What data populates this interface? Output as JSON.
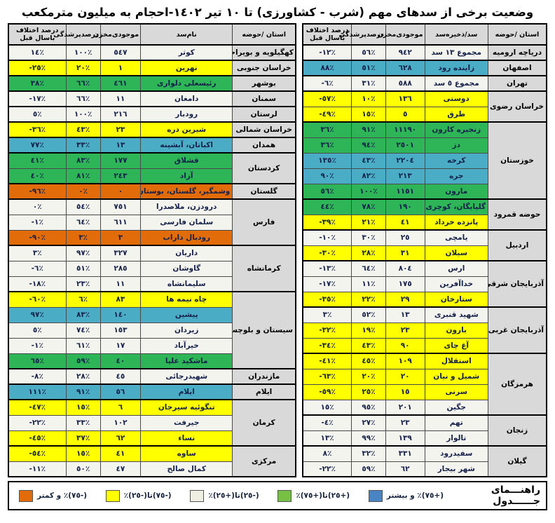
{
  "title": "وضعیت برخی از سدهای مهم (شرب - کشاورزی) تا ١٠ تیر ١٤٠٢-احجام به میلیون مترمکعب",
  "colors": {
    "white": "#f4f4ef",
    "yellow": "#ffff00",
    "green": "#2eb558",
    "blue": "#4bacc6",
    "orange": "#e36c0a",
    "header_bg": "#d9d9d9",
    "province_bg": "#d9d9d9",
    "text": "#16214a"
  },
  "tables": {
    "right": {
      "headers": [
        "استان /حوضه",
        "سد/ذخیره‌سد",
        "موجودی‌مخزن",
        "درصدپرشدگی",
        "درصد اختلاف باسال قبل"
      ],
      "groups": [
        {
          "province": "دریاچه ارومیه",
          "rows": [
            {
              "name": "مجموع ١٣ سد",
              "volume": "٩٤٢",
              "fill": "٥٦٪",
              "diff": "-١٢٪",
              "color": "white"
            }
          ]
        },
        {
          "province": "اصفهان",
          "rows": [
            {
              "name": "زاینده رود",
              "volume": "٦٢٨",
              "fill": "٥١٪",
              "diff": "٨٨٪",
              "color": "blue"
            }
          ]
        },
        {
          "province": "تهران",
          "rows": [
            {
              "name": "مجموع ٥ سد",
              "volume": "٥٨٨",
              "fill": "٣١٪",
              "diff": "-٦٪",
              "color": "white"
            }
          ]
        },
        {
          "province": "خراسان رضوی",
          "rows": [
            {
              "name": "دوستی",
              "volume": "١٣٦",
              "fill": "١٠٪",
              "diff": "-٥٧٪",
              "color": "yellow"
            },
            {
              "name": "طرق",
              "volume": "٥",
              "fill": "١٥٪",
              "diff": "-٤٩٪",
              "color": "yellow"
            }
          ]
        },
        {
          "province": "خوزستان",
          "rows": [
            {
              "name": "زنجیره کارون",
              "volume": "١١١٩٠",
              "fill": "٩١٪",
              "diff": "٣٦٪",
              "color": "green"
            },
            {
              "name": "دز",
              "volume": "٢٥٠١",
              "fill": "٩٤٪",
              "diff": "٣٦٪",
              "color": "green"
            },
            {
              "name": "کرخه",
              "volume": "٢٢٠٤",
              "fill": "٤٣٪",
              "diff": "١٣٥٪",
              "color": "blue"
            },
            {
              "name": "جره",
              "volume": "٢١٣",
              "fill": "٨٢٪",
              "diff": "٩٠٪",
              "color": "blue"
            },
            {
              "name": "مارون",
              "volume": "١١٥١",
              "fill": "١٠٠٪",
              "diff": "٥٦٪",
              "color": "green"
            }
          ]
        },
        {
          "province": "حوضه قمرود",
          "rows": [
            {
              "name": "گلپایگان، کوچری",
              "volume": "١٩٠",
              "fill": "٧٨٪",
              "diff": "٤٤٪",
              "color": "green"
            },
            {
              "name": "پانزده خرداد",
              "volume": "٤١",
              "fill": "٢١٪",
              "diff": "-٣٩٪",
              "color": "yellow"
            }
          ]
        },
        {
          "province": "اردبیل",
          "rows": [
            {
              "name": "یامچی",
              "volume": "٢٥",
              "fill": "٣٠٪",
              "diff": "-١٠٪",
              "color": "white"
            },
            {
              "name": "سبلان",
              "volume": "٣١",
              "fill": "٢٨٪",
              "diff": "-٣٠٪",
              "color": "yellow"
            }
          ]
        },
        {
          "province": "آذربایجان شرقی",
          "rows": [
            {
              "name": "ارس",
              "volume": "٨٠٤",
              "fill": "٦٤٪",
              "diff": "-١٣٪",
              "color": "white"
            },
            {
              "name": "خداآفرین",
              "volume": "١٧٥",
              "fill": "١١٪",
              "diff": "-١٧٪",
              "color": "white"
            },
            {
              "name": "ستارخان",
              "volume": "٢٩",
              "fill": "٢٢٪",
              "diff": "-٣٥٪",
              "color": "yellow"
            }
          ]
        },
        {
          "province": "آذربایجان غربی",
          "rows": [
            {
              "name": "شهید قنبری",
              "volume": "١٣",
              "fill": "٥٢٪",
              "diff": "٣٪",
              "color": "white"
            },
            {
              "name": "بارون",
              "volume": "٢٣",
              "fill": "١٩٪",
              "diff": "-٣٢٪",
              "color": "yellow"
            },
            {
              "name": "آغ چای",
              "volume": "٩٠",
              "fill": "٤٣٪",
              "diff": "-٣٤٪",
              "color": "yellow"
            }
          ]
        },
        {
          "province": "هرمزگان",
          "rows": [
            {
              "name": "استقلال",
              "volume": "١٠٩",
              "fill": "٤٥٪",
              "diff": "-٤١٪",
              "color": "yellow"
            },
            {
              "name": "شمیل و نیان",
              "volume": "٢٠",
              "fill": "٢٠٪",
              "diff": "-٦٣٪",
              "color": "yellow"
            },
            {
              "name": "سرنی",
              "volume": "١٥",
              "fill": "٢٥٪",
              "diff": "-٥٩٪",
              "color": "yellow"
            },
            {
              "name": "جگین",
              "volume": "٢٠١",
              "fill": "٩٥٪",
              "diff": "١٥٪",
              "color": "white"
            }
          ]
        },
        {
          "province": "زنجان",
          "rows": [
            {
              "name": "تهم",
              "volume": "٢٣",
              "fill": "٢٧٪",
              "diff": "-٤٪",
              "color": "white"
            },
            {
              "name": "تالوار",
              "volume": "١٣٩",
              "fill": "٩٩٪",
              "diff": "١٣٪",
              "color": "white"
            }
          ]
        },
        {
          "province": "گیلان",
          "rows": [
            {
              "name": "سفیدرود",
              "volume": "٣٣١",
              "fill": "٣٢٪",
              "diff": "٨٪",
              "color": "white"
            },
            {
              "name": "شهر بیجار",
              "volume": "٦٢",
              "fill": "٥٩٪",
              "diff": "-٢٢٪",
              "color": "white"
            }
          ]
        }
      ]
    },
    "left": {
      "headers": [
        "استان /حوضه",
        "نام‌سد",
        "موجودی‌مخزن",
        "درصدپرشدگی",
        "درصد اختلاف باسال قبل"
      ],
      "groups": [
        {
          "province": "کهگیلویه و بویراحمد",
          "rows": [
            {
              "name": "کوثر",
              "volume": "٥٤٧",
              "fill": "١٠٠٪",
              "diff": "١٤٪",
              "color": "white"
            }
          ]
        },
        {
          "province": "خراسان جنوبی",
          "rows": [
            {
              "name": "نهرین",
              "volume": "١",
              "fill": "٢٠٪",
              "diff": "-٢٥٪",
              "color": "yellow"
            }
          ]
        },
        {
          "province": "بوشهر",
          "rows": [
            {
              "name": "رئیسعلی دلواری",
              "volume": "٤٦١",
              "fill": "٦٦٪",
              "diff": "٣٨٪",
              "color": "green"
            }
          ]
        },
        {
          "province": "سمنان",
          "rows": [
            {
              "name": "دامغان",
              "volume": "١١",
              "fill": "٦٦٪",
              "diff": "-١٧٪",
              "color": "white"
            }
          ]
        },
        {
          "province": "لرستان",
          "rows": [
            {
              "name": "رودبار",
              "volume": "٢١٦",
              "fill": "١٠٠٪",
              "diff": "٥٪",
              "color": "white"
            }
          ]
        },
        {
          "province": "خراسان شمالی",
          "rows": [
            {
              "name": "شیرین دره",
              "volume": "٢٣",
              "fill": "٤٣٪",
              "diff": "-٣٦٪",
              "color": "yellow"
            }
          ]
        },
        {
          "province": "همدان",
          "rows": [
            {
              "name": "اکباتان، آبشینه",
              "volume": "١٣",
              "fill": "٣٣٪",
              "diff": "٧٧٪",
              "color": "blue"
            }
          ]
        },
        {
          "province": "کردستان",
          "rows": [
            {
              "name": "قشلاق",
              "volume": "١٧٧",
              "fill": "٨٣٪",
              "diff": "٤١٪",
              "color": "green"
            },
            {
              "name": "آزاد",
              "volume": "٢٤٣",
              "fill": "٨١٪",
              "diff": "٤٠٪",
              "color": "green"
            }
          ]
        },
        {
          "province": "گلستان",
          "rows": [
            {
              "name": "وشمگیر، گلستان، بوستان",
              "volume": "٠",
              "fill": "٠٪",
              "diff": "-٩٦٪",
              "color": "orange"
            }
          ]
        },
        {
          "province": "فارس",
          "rows": [
            {
              "name": "درودزن، ملاصدرا",
              "volume": "٧٥١",
              "fill": "٥٤٪",
              "diff": "٠٪",
              "color": "white"
            },
            {
              "name": "سلمان فارسی",
              "volume": "٦١١",
              "fill": "٦٤٪",
              "diff": "-١٪",
              "color": "white"
            },
            {
              "name": "رودبال داراب",
              "volume": "٣",
              "fill": "٣٪",
              "diff": "-٩٠٪",
              "color": "orange"
            }
          ]
        },
        {
          "province": "کرمانشاه",
          "rows": [
            {
              "name": "داریان",
              "volume": "٣٢٧",
              "fill": "٩٧٪",
              "diff": "٣٪",
              "color": "white"
            },
            {
              "name": "گاوشان",
              "volume": "٢٨٥",
              "fill": "٥١٪",
              "diff": "-٦٪",
              "color": "white"
            },
            {
              "name": "سلیمانشاه",
              "volume": "١١",
              "fill": "٢٣٪",
              "diff": "-١٨٪",
              "color": "white"
            }
          ]
        },
        {
          "province": "سیستان و بلوچستان",
          "rows": [
            {
              "name": "چاه نیمه ها",
              "volume": "٨٣",
              "fill": "٦٪",
              "diff": "-٦٠٪",
              "color": "yellow"
            },
            {
              "name": "پیشین",
              "volume": "١٤٠",
              "fill": "٨٣٪",
              "diff": "٩٧٪",
              "color": "blue"
            },
            {
              "name": "زیردان",
              "volume": "١٥٣",
              "fill": "٧٤٪",
              "diff": "٥٪",
              "color": "white"
            },
            {
              "name": "خیرآباد",
              "volume": "١٧",
              "fill": "٦١٪",
              "diff": "-١٪",
              "color": "white"
            },
            {
              "name": "ماشکید علیا",
              "volume": "٤٠",
              "fill": "٥٩٪",
              "diff": "٦٥٪",
              "color": "green"
            }
          ]
        },
        {
          "province": "مازندران",
          "rows": [
            {
              "name": "شهیدرجائی",
              "volume": "٤٥",
              "fill": "٢٨٪",
              "diff": "-٨٪",
              "color": "white"
            }
          ]
        },
        {
          "province": "ایلام",
          "rows": [
            {
              "name": "ایلام",
              "volume": "٥٦",
              "fill": "٩١٪",
              "diff": "١١١٪",
              "color": "blue"
            }
          ]
        },
        {
          "province": "کرمان",
          "rows": [
            {
              "name": "تنگوئیه سیرجان",
              "volume": "٦",
              "fill": "١٥٪",
              "diff": "-٤٧٪",
              "color": "yellow"
            },
            {
              "name": "جیرفت",
              "volume": "١٠٢",
              "fill": "٣٣٪",
              "diff": "-٢٢٪",
              "color": "white"
            },
            {
              "name": "نساء",
              "volume": "٦٢",
              "fill": "٣٧٪",
              "diff": "-٤٥٪",
              "color": "yellow"
            }
          ]
        },
        {
          "province": "مرکزی",
          "rows": [
            {
              "name": "ساوه",
              "volume": "٤١",
              "fill": "١٥٪",
              "diff": "-٥٤٪",
              "color": "yellow"
            },
            {
              "name": "کمال صالح",
              "volume": "٤٧",
              "fill": "٥٠٪",
              "diff": "-١١٪",
              "color": "white"
            }
          ]
        }
      ]
    }
  },
  "legend": {
    "title": "راهنـــمای جــــــدول",
    "items": [
      {
        "key": "blue",
        "label": "(+٧٥)٪ و بیشتر",
        "color": "#4a84c4"
      },
      {
        "key": "green",
        "label": "(+٢٥)تا(+٧٥)٪",
        "color": "#76c043"
      },
      {
        "key": "white",
        "label": "(-٢٥)تا(+٢٥)٪",
        "color": "#efefe3"
      },
      {
        "key": "yellow",
        "label": "(-٧٥)تا(-٢٥)٪",
        "color": "#ffff00"
      },
      {
        "key": "orange",
        "label": "(-٧٥)٪ و کمتر",
        "color": "#e36c0a"
      }
    ]
  }
}
